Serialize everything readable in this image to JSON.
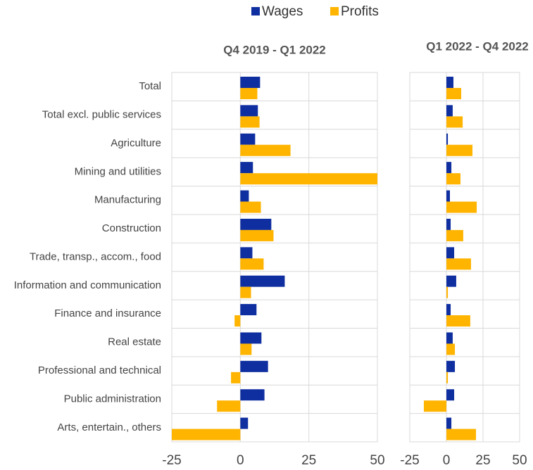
{
  "legend": [
    "Wages",
    "Profits"
  ],
  "chart_data": [
    {
      "type": "barh",
      "title": "Q4 2019 - Q1 2022",
      "categories": [
        "Total",
        "Total excl. public services",
        "Agriculture",
        "Mining and utilities",
        "Manufacturing",
        "Construction",
        "Trade, transp., accom., food",
        "Information and communication",
        "Finance and insurance",
        "Real estate",
        "Professional and technical",
        "Public administration",
        "Arts, entertain., others"
      ],
      "series": [
        {
          "name": "Wages",
          "color": "#0f2fa0",
          "values": [
            7.2,
            6.4,
            5.4,
            4.6,
            3.1,
            11.3,
            4.4,
            16.2,
            5.9,
            7.7,
            10.1,
            8.8,
            2.8
          ]
        },
        {
          "name": "Profits",
          "color": "#ffb400",
          "values": [
            6.2,
            7.0,
            18.3,
            50,
            7.5,
            12.1,
            8.5,
            3.9,
            -2.1,
            4.1,
            -3.4,
            -8.5,
            -25
          ]
        }
      ],
      "xlim": [
        -25,
        50
      ],
      "xticks": [
        -25,
        0,
        25,
        50
      ],
      "grid": true
    },
    {
      "type": "barh",
      "title": "Q1 2022 - Q4 2022",
      "series": [
        {
          "name": "Wages",
          "color": "#0f2fa0",
          "values": [
            4.8,
            4.3,
            1.0,
            3.4,
            2.4,
            2.9,
            5.3,
            6.7,
            2.9,
            4.3,
            5.8,
            5.3,
            3.4
          ]
        },
        {
          "name": "Profits",
          "color": "#ffb400",
          "values": [
            10.1,
            11.1,
            17.8,
            9.6,
            20.7,
            11.5,
            16.8,
            1.0,
            16.3,
            5.8,
            1.0,
            -15.4,
            20.2
          ]
        }
      ],
      "xlim": [
        -25,
        50
      ],
      "xticks": [
        -25,
        0,
        25,
        50
      ],
      "grid": true
    }
  ]
}
